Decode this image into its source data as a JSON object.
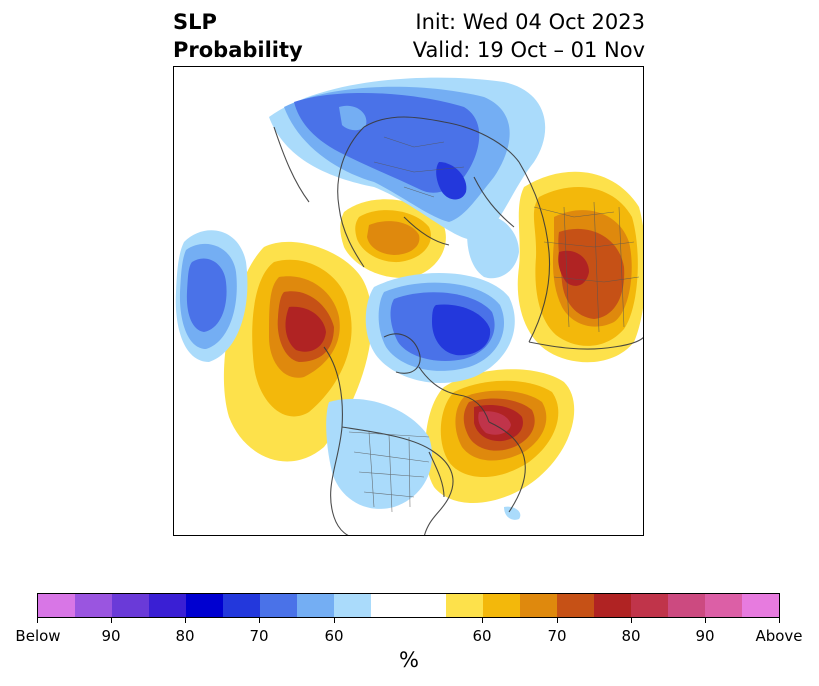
{
  "header": {
    "title_line1": "SLP",
    "title_line2": "Probability",
    "init_text": "Init: Wed 04 Oct 2023",
    "valid_text": "Valid: 19 Oct – 01 Nov"
  },
  "colorbar": {
    "unit": "%",
    "colors": [
      "#d876e6",
      "#9a55e0",
      "#6a3ad8",
      "#3a1fd4",
      "#0000d0",
      "#2338dc",
      "#4a72e8",
      "#74aef3",
      "#aadbfb",
      "#ffffff",
      "#ffffff",
      "#fde14b",
      "#f3b80b",
      "#df890d",
      "#c65116",
      "#b02323",
      "#c0344a",
      "#cc4a80",
      "#dc5fa6",
      "#e77bdf"
    ],
    "tick_labels": [
      "Below",
      "90",
      "80",
      "70",
      "60",
      "60",
      "70",
      "80",
      "90",
      "Above"
    ]
  },
  "map": {
    "projection": "polar stereographic (Northern Hemisphere)",
    "palette": {
      "blue_light": "#aadbfb",
      "blue_mid": "#74aef3",
      "blue": "#4a72e8",
      "blue_dark": "#2338dc",
      "yellow": "#fde14b",
      "gold": "#f3b80b",
      "orange": "#df890d",
      "rust": "#c65116",
      "red": "#b02323",
      "crimson": "#c0344a"
    }
  }
}
